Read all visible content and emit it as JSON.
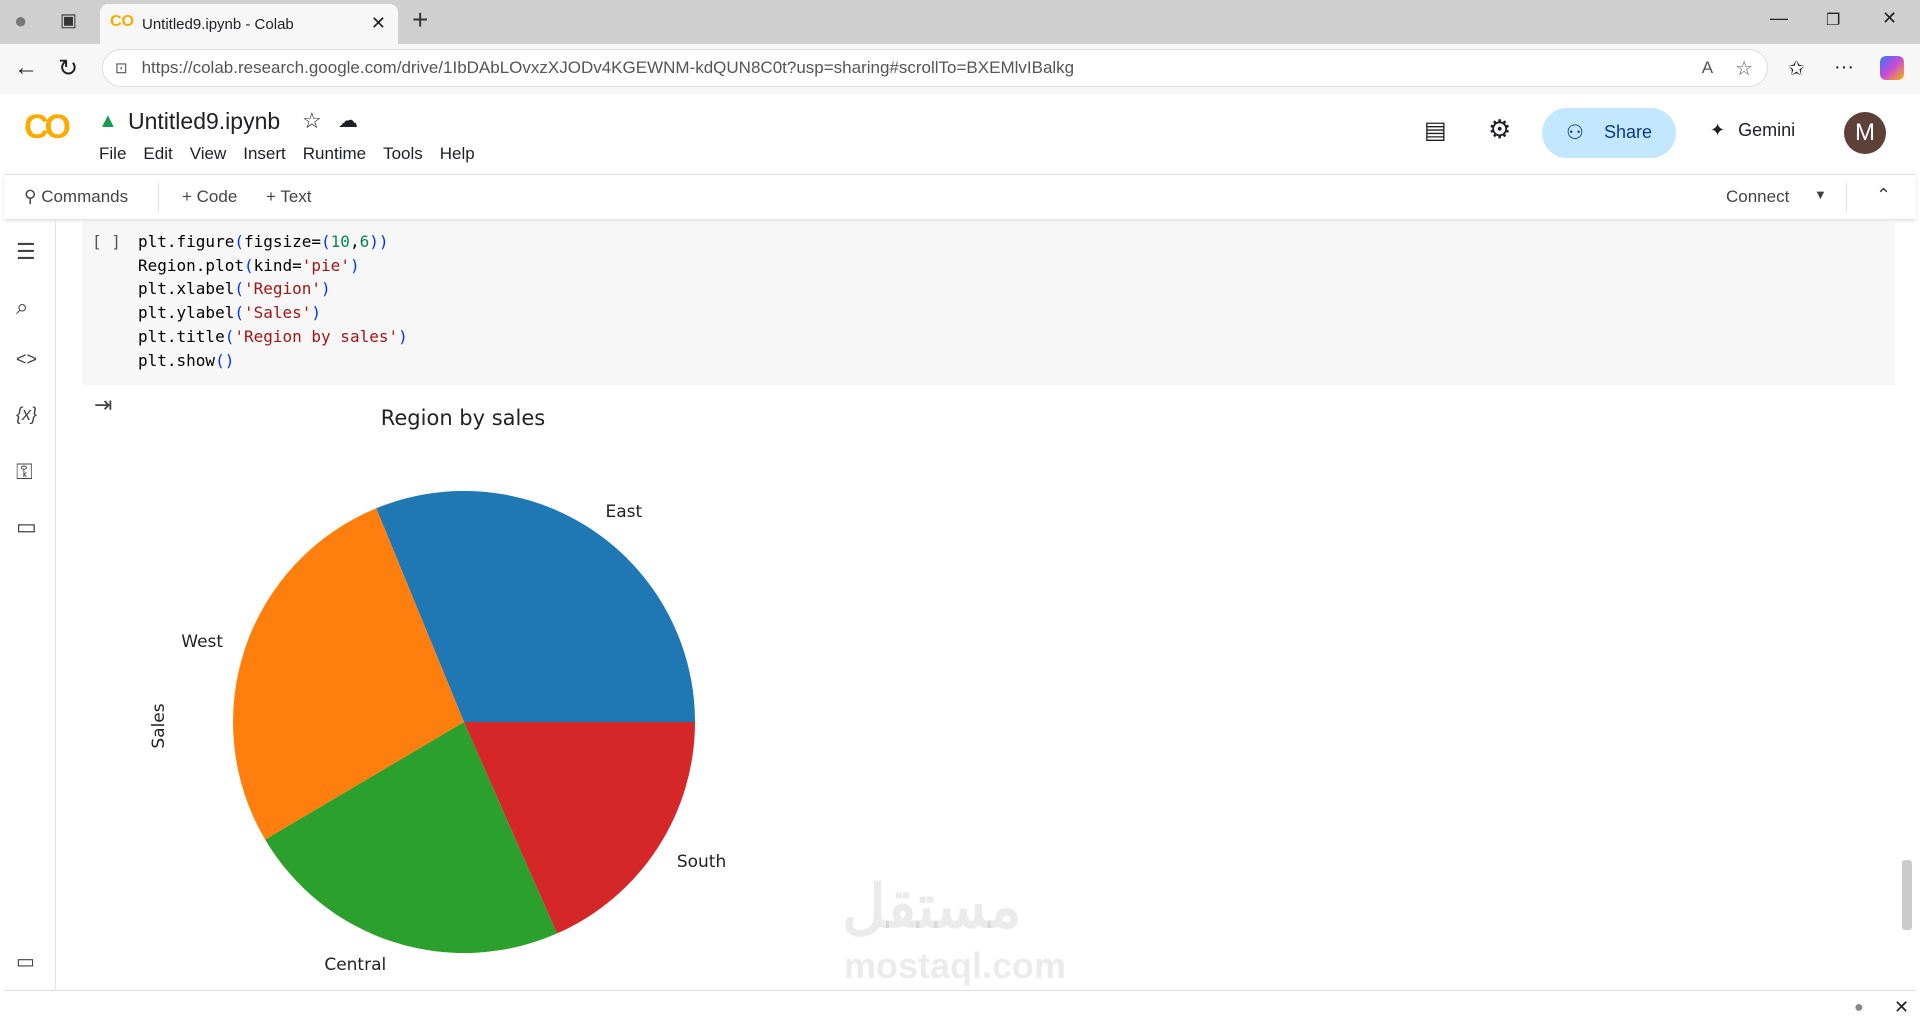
{
  "browser": {
    "tab_title": "Untitled9.ipynb - Colab",
    "url": "https://colab.research.google.com/drive/1IbDAbLOvxzXJODv4KGEWNM-kdQUN8C0t?usp=sharing#scrollTo=BXEMlvIBalkg"
  },
  "header": {
    "notebook_title": "Untitled9.ipynb",
    "menu": [
      "File",
      "Edit",
      "View",
      "Insert",
      "Runtime",
      "Tools",
      "Help"
    ],
    "share_label": "Share",
    "gemini_label": "Gemini",
    "avatar_letter": "M",
    "accent": "#c2e7ff"
  },
  "toolbar": {
    "commands_label": "Commands",
    "code_label": "+ Code",
    "text_label": "+ Text",
    "connect_label": "Connect"
  },
  "cell": {
    "run_indicator": "[ ]",
    "lines": [
      "plt.figure(figsize=(10,6))",
      "Region.plot(kind='pie')",
      "plt.xlabel('Region')",
      "plt.ylabel('Sales')",
      "plt.title('Region by sales')",
      "plt.show()"
    ]
  },
  "watermark": {
    "arabic": "مستقل",
    "latin": "mostaql.com"
  },
  "chart_data": {
    "type": "pie",
    "title": "Region by sales",
    "ylabel": "Sales",
    "start_angle": 0,
    "direction": "counterclockwise",
    "categories": [
      "East",
      "West",
      "Central",
      "South"
    ],
    "values": [
      31.2,
      27.3,
      23.1,
      18.4
    ],
    "value_unit": "percent of total (estimated from slice angles)",
    "colors": [
      "#1f77b4",
      "#ff7f0e",
      "#2ca02c",
      "#d62728"
    ]
  }
}
